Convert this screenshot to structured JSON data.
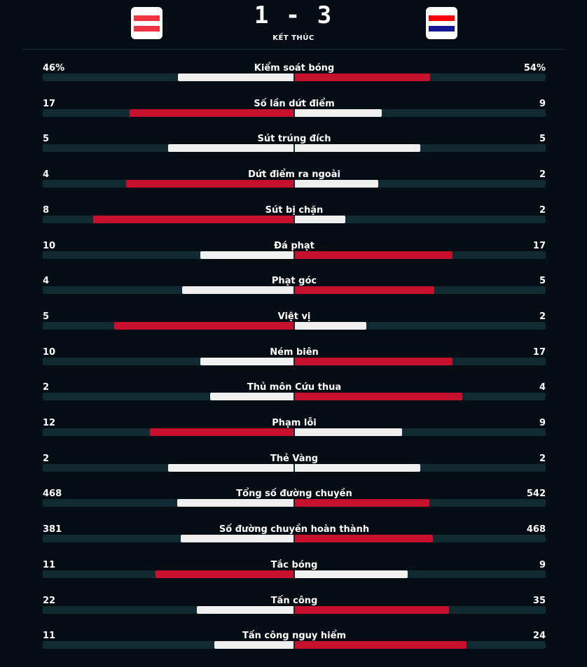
{
  "match": {
    "home_team": {
      "flag_icon": "austria-flag-icon",
      "flag_colors": [
        "#ef3340",
        "#ffffff",
        "#ef3340"
      ]
    },
    "away_team": {
      "flag_icon": "croatia-flag-icon",
      "flag_colors": [
        "#ff0000",
        "#ffffff",
        "#171796"
      ]
    },
    "score": "1 - 3",
    "status": "KẾT THÚC"
  },
  "colors": {
    "background": "#030d13",
    "track": "#0f2a31",
    "leading": "#c8102e",
    "trailing": "#f0f0f0"
  },
  "stats": [
    {
      "label": "Kiểm soát bóng",
      "home": "46%",
      "away": "54%",
      "home_value": 46,
      "away_value": 54
    },
    {
      "label": "Số lần dứt điểm",
      "home": "17",
      "away": "9",
      "home_value": 17,
      "away_value": 9
    },
    {
      "label": "Sút trúng đích",
      "home": "5",
      "away": "5",
      "home_value": 5,
      "away_value": 5
    },
    {
      "label": "Dứt điểm ra ngoài",
      "home": "4",
      "away": "2",
      "home_value": 4,
      "away_value": 2
    },
    {
      "label": "Sút bị chặn",
      "home": "8",
      "away": "2",
      "home_value": 8,
      "away_value": 2
    },
    {
      "label": "Đá phạt",
      "home": "10",
      "away": "17",
      "home_value": 10,
      "away_value": 17
    },
    {
      "label": "Phạt góc",
      "home": "4",
      "away": "5",
      "home_value": 4,
      "away_value": 5
    },
    {
      "label": "Việt vị",
      "home": "5",
      "away": "2",
      "home_value": 5,
      "away_value": 2
    },
    {
      "label": "Ném biên",
      "home": "10",
      "away": "17",
      "home_value": 10,
      "away_value": 17
    },
    {
      "label": "Thủ môn Cứu thua",
      "home": "2",
      "away": "4",
      "home_value": 2,
      "away_value": 4
    },
    {
      "label": "Phạm lỗi",
      "home": "12",
      "away": "9",
      "home_value": 12,
      "away_value": 9
    },
    {
      "label": "Thẻ Vàng",
      "home": "2",
      "away": "2",
      "home_value": 2,
      "away_value": 2
    },
    {
      "label": "Tổng số đường chuyền",
      "home": "468",
      "away": "542",
      "home_value": 468,
      "away_value": 542
    },
    {
      "label": "Số đường chuyền hoàn thành",
      "home": "381",
      "away": "468",
      "home_value": 381,
      "away_value": 468
    },
    {
      "label": "Tắc bóng",
      "home": "11",
      "away": "9",
      "home_value": 11,
      "away_value": 9
    },
    {
      "label": "Tấn công",
      "home": "22",
      "away": "35",
      "home_value": 22,
      "away_value": 35
    },
    {
      "label": "Tấn công nguy hiểm",
      "home": "11",
      "away": "24",
      "home_value": 11,
      "away_value": 24
    }
  ]
}
